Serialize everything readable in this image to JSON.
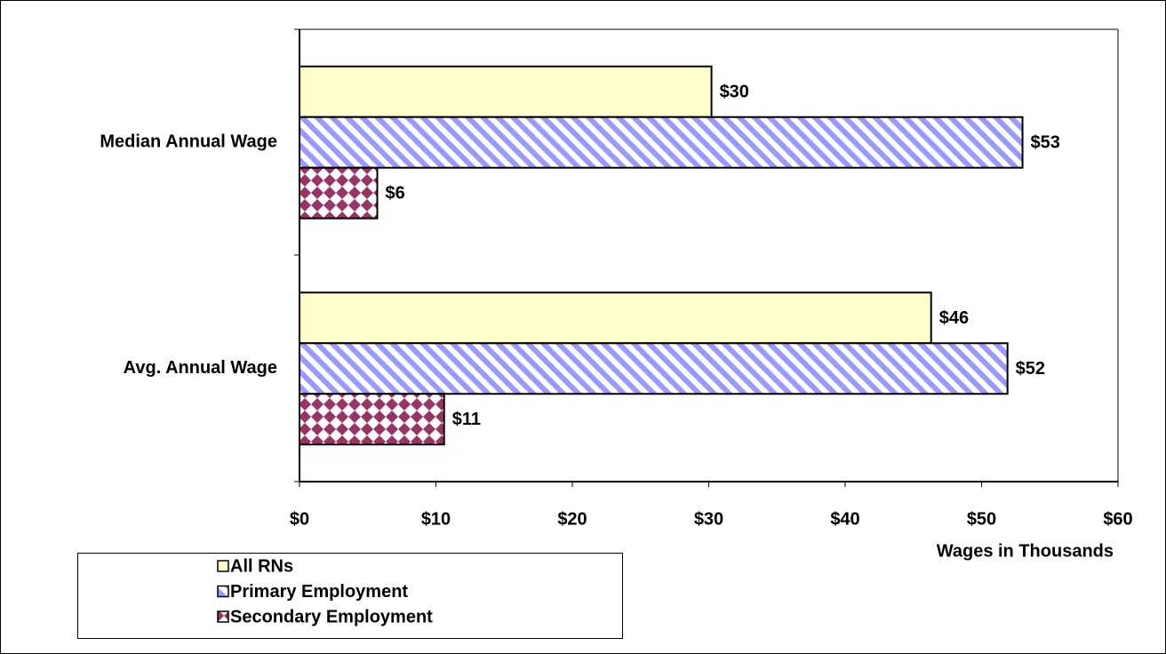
{
  "chart_data": {
    "type": "hbar",
    "categories": [
      "Median Annual Wage",
      "Avg. Annual Wage"
    ],
    "series": [
      {
        "name": "All RNs",
        "color": "#ffffcc",
        "pattern": "solid",
        "values": [
          30.2,
          46.3
        ],
        "value_labels": [
          "$30",
          "$46"
        ]
      },
      {
        "name": "Primary Employment",
        "color": "#9999ff",
        "pattern": "stripes",
        "values": [
          53,
          51.9
        ],
        "value_labels": [
          "$53",
          "$52"
        ]
      },
      {
        "name": "Secondary Employment",
        "color": "#993366",
        "pattern": "checker",
        "values": [
          5.7,
          10.6
        ],
        "value_labels": [
          "$6",
          "$11"
        ]
      }
    ],
    "xlabel": "Wages in Thousands",
    "xlim": [
      0,
      60
    ],
    "xticks": [
      {
        "value": 0,
        "label": "$0"
      },
      {
        "value": 10,
        "label": "$10"
      },
      {
        "value": 20,
        "label": "$20"
      },
      {
        "value": 30,
        "label": "$30"
      },
      {
        "value": 40,
        "label": "$40"
      },
      {
        "value": 50,
        "label": "$50"
      },
      {
        "value": 60,
        "label": "$60"
      }
    ],
    "grid": false
  }
}
